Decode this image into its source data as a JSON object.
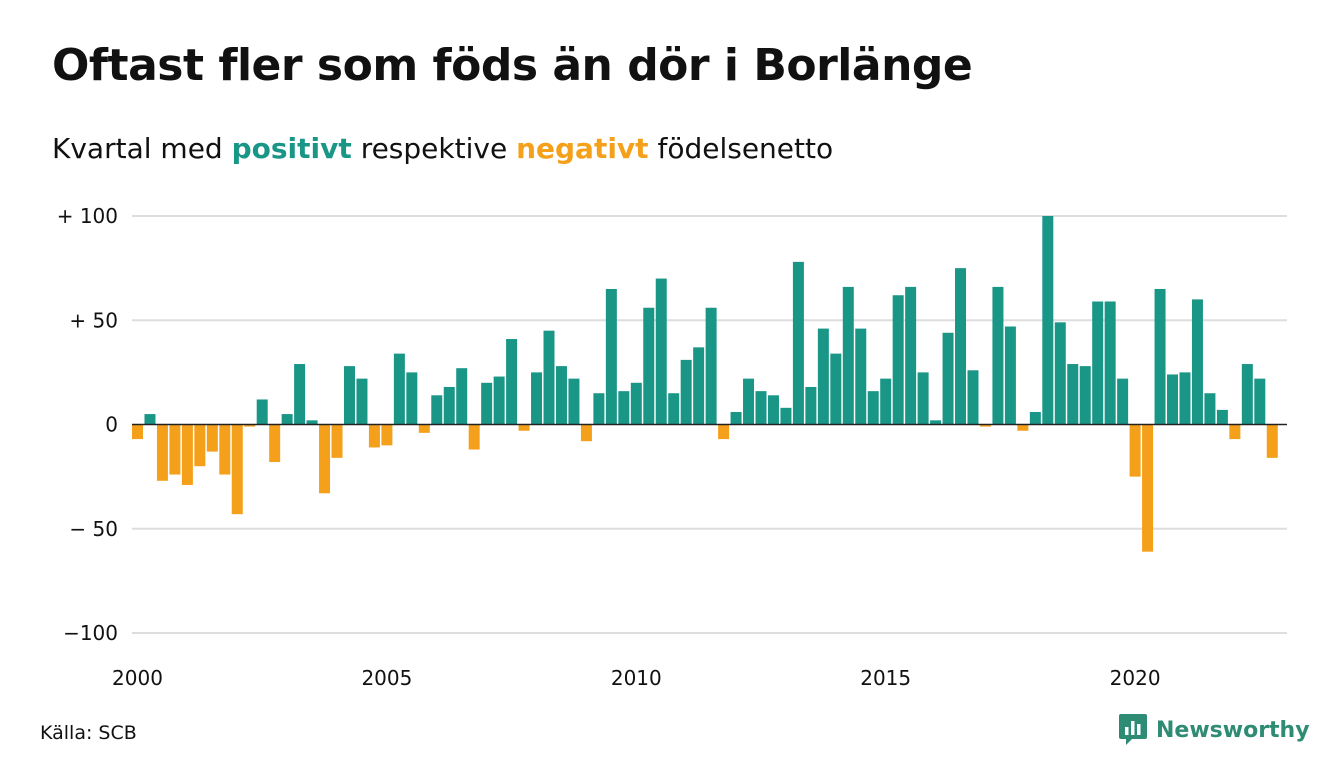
{
  "title": "Oftast fler som föds än dör i Borlänge",
  "subtitle": {
    "prefix": "Kvartal med",
    "positive_word": "positivt",
    "middle": "respektive",
    "negative_word": "negativt",
    "suffix": "födelsenetto"
  },
  "source": "Källa: SCB",
  "brand": {
    "name": "Newsworthy",
    "icon": "newsworthy-chart-bubble-icon"
  },
  "colors": {
    "positive": "#1a9687",
    "negative": "#f5a01b",
    "grid": "#dddddd",
    "zero": "#222222"
  },
  "chart_data": {
    "type": "bar",
    "x_start": "2000 Q1",
    "x_ticks": [
      "2000",
      "2005",
      "2010",
      "2015",
      "2020"
    ],
    "y_ticks": [
      "+ 100",
      "+  50",
      "0",
      "− 50",
      "−100"
    ],
    "y_tick_values": [
      100,
      50,
      0,
      -50,
      -100
    ],
    "ylim": [
      -100,
      100
    ],
    "grid": true,
    "values": [
      -7,
      5,
      -27,
      -24,
      -29,
      -20,
      -13,
      -24,
      -43,
      -1,
      12,
      -18,
      5,
      29,
      2,
      -33,
      -16,
      28,
      22,
      -11,
      -10,
      34,
      25,
      -4,
      14,
      18,
      27,
      -12,
      20,
      23,
      41,
      -3,
      25,
      45,
      28,
      22,
      -8,
      15,
      65,
      16,
      20,
      56,
      70,
      15,
      31,
      37,
      56,
      -7,
      6,
      22,
      16,
      14,
      8,
      78,
      18,
      46,
      34,
      66,
      46,
      16,
      22,
      62,
      66,
      25,
      2,
      44,
      75,
      26,
      -1,
      66,
      47,
      -3,
      6,
      100,
      49,
      29,
      28,
      59,
      59,
      22,
      -25,
      -61,
      65,
      24,
      25,
      60,
      15,
      7,
      -7,
      29,
      22,
      -16
    ]
  }
}
